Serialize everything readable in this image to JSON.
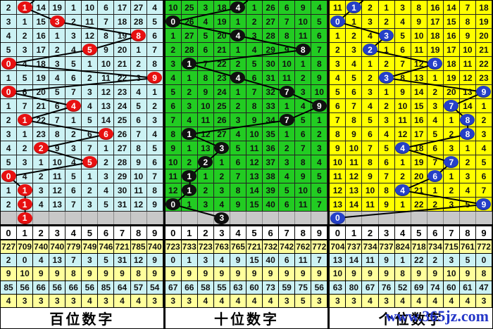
{
  "watermark": {
    "text": "www.365jz.com",
    "color": "#2436c8"
  },
  "chart_data": {
    "type": "table",
    "columns": [
      "0",
      "1",
      "2",
      "3",
      "4",
      "5",
      "6",
      "7",
      "8",
      "9"
    ],
    "stats_row_bg": [
      "#ffff9c",
      "#ccf2f4",
      "#ffff9c",
      "#ccf2f4",
      "#ffff9c"
    ],
    "line_color": "#000000",
    "panels": [
      {
        "key": "hundreds",
        "label": "百位数字",
        "bg": "#ccf2f4",
        "circle_color": "#e81010",
        "rows": [
          {
            "cells": [
              "2",
              "1",
              "14",
              "19",
              "1",
              "10",
              "6",
              "17",
              "27",
              "4"
            ],
            "c": 1
          },
          {
            "cells": [
              "3",
              "1",
              "15",
              "3",
              "2",
              "11",
              "7",
              "18",
              "28",
              "5"
            ],
            "c": 3
          },
          {
            "cells": [
              "4",
              "2",
              "16",
              "1",
              "3",
              "12",
              "8",
              "19",
              "8",
              "6"
            ],
            "c": 8
          },
          {
            "cells": [
              "5",
              "3",
              "17",
              "2",
              "4",
              "5",
              "9",
              "20",
              "1",
              "7"
            ],
            "c": 5
          },
          {
            "cells": [
              "0",
              "4",
              "18",
              "3",
              "5",
              "1",
              "10",
              "21",
              "2",
              "8"
            ],
            "c": 0
          },
          {
            "cells": [
              "1",
              "5",
              "19",
              "4",
              "6",
              "2",
              "11",
              "22",
              "3",
              "9"
            ],
            "c": 9
          },
          {
            "cells": [
              "0",
              "6",
              "20",
              "5",
              "7",
              "3",
              "12",
              "23",
              "4",
              "1"
            ],
            "c": 0
          },
          {
            "cells": [
              "1",
              "7",
              "21",
              "6",
              "4",
              "4",
              "13",
              "24",
              "5",
              "2"
            ],
            "c": 4
          },
          {
            "cells": [
              "2",
              "1",
              "22",
              "7",
              "1",
              "5",
              "14",
              "25",
              "6",
              "3"
            ],
            "c": 1
          },
          {
            "cells": [
              "3",
              "1",
              "23",
              "8",
              "2",
              "6",
              "6",
              "26",
              "7",
              "4"
            ],
            "c": 6
          },
          {
            "cells": [
              "4",
              "2",
              "2",
              "9",
              "3",
              "7",
              "1",
              "27",
              "8",
              "5"
            ],
            "c": 2
          },
          {
            "cells": [
              "5",
              "3",
              "1",
              "10",
              "4",
              "5",
              "2",
              "28",
              "9",
              "6"
            ],
            "c": 5
          },
          {
            "cells": [
              "0",
              "4",
              "2",
              "11",
              "5",
              "1",
              "3",
              "29",
              "10",
              "7"
            ],
            "c": 0
          },
          {
            "cells": [
              "1",
              "1",
              "3",
              "12",
              "6",
              "2",
              "4",
              "30",
              "11",
              "8"
            ],
            "c": 1
          },
          {
            "cells": [
              "2",
              "1",
              "4",
              "13",
              "7",
              "3",
              "5",
              "31",
              "12",
              "9"
            ],
            "c": 1
          }
        ],
        "pending": {
          "c": 1,
          "v": "1"
        },
        "stats": [
          [
            "727",
            "709",
            "740",
            "740",
            "779",
            "749",
            "746",
            "721",
            "785",
            "740"
          ],
          [
            "2",
            "0",
            "4",
            "13",
            "7",
            "3",
            "5",
            "31",
            "12",
            "9"
          ],
          [
            "9",
            "10",
            "9",
            "9",
            "8",
            "9",
            "9",
            "9",
            "8",
            "9"
          ],
          [
            "85",
            "56",
            "66",
            "56",
            "66",
            "56",
            "85",
            "64",
            "57",
            "54"
          ],
          [
            "4",
            "3",
            "3",
            "3",
            "3",
            "4",
            "3",
            "4",
            "4",
            "3"
          ]
        ]
      },
      {
        "key": "tens",
        "label": "十位数字",
        "bg": "#22cc22",
        "circle_color": "#101010",
        "rows": [
          {
            "cells": [
              "10",
              "25",
              "3",
              "18",
              "4",
              "1",
              "26",
              "6",
              "9",
              "4"
            ],
            "c": 4
          },
          {
            "cells": [
              "0",
              "26",
              "4",
              "19",
              "1",
              "2",
              "27",
              "7",
              "10",
              "5"
            ],
            "c": 0
          },
          {
            "cells": [
              "1",
              "27",
              "5",
              "20",
              "4",
              "3",
              "28",
              "8",
              "11",
              "6"
            ],
            "c": 4
          },
          {
            "cells": [
              "2",
              "28",
              "6",
              "21",
              "1",
              "4",
              "29",
              "9",
              "8",
              "7"
            ],
            "c": 8
          },
          {
            "cells": [
              "3",
              "1",
              "7",
              "22",
              "2",
              "5",
              "30",
              "10",
              "1",
              "8"
            ],
            "c": 1
          },
          {
            "cells": [
              "4",
              "1",
              "8",
              "23",
              "4",
              "6",
              "31",
              "11",
              "2",
              "9"
            ],
            "c": 4
          },
          {
            "cells": [
              "5",
              "2",
              "9",
              "24",
              "1",
              "7",
              "32",
              "7",
              "3",
              "10"
            ],
            "c": 7
          },
          {
            "cells": [
              "6",
              "3",
              "10",
              "25",
              "2",
              "8",
              "33",
              "1",
              "4",
              "9"
            ],
            "c": 9
          },
          {
            "cells": [
              "7",
              "4",
              "11",
              "26",
              "3",
              "9",
              "34",
              "7",
              "5",
              "1"
            ],
            "c": 7
          },
          {
            "cells": [
              "8",
              "1",
              "12",
              "27",
              "4",
              "10",
              "35",
              "1",
              "6",
              "2"
            ],
            "c": 1
          },
          {
            "cells": [
              "9",
              "1",
              "13",
              "3",
              "5",
              "11",
              "36",
              "2",
              "7",
              "3"
            ],
            "c": 3
          },
          {
            "cells": [
              "10",
              "2",
              "2",
              "1",
              "6",
              "12",
              "37",
              "3",
              "8",
              "4"
            ],
            "c": 2
          },
          {
            "cells": [
              "11",
              "1",
              "1",
              "2",
              "7",
              "13",
              "38",
              "4",
              "9",
              "5"
            ],
            "c": 1
          },
          {
            "cells": [
              "12",
              "1",
              "2",
              "3",
              "8",
              "14",
              "39",
              "5",
              "10",
              "6"
            ],
            "c": 1
          },
          {
            "cells": [
              "0",
              "1",
              "3",
              "4",
              "9",
              "15",
              "40",
              "6",
              "11",
              "7"
            ],
            "c": 0
          }
        ],
        "pending": {
          "c": 3,
          "v": "3"
        },
        "stats": [
          [
            "723",
            "733",
            "723",
            "763",
            "765",
            "721",
            "732",
            "742",
            "762",
            "772"
          ],
          [
            "0",
            "1",
            "3",
            "4",
            "9",
            "15",
            "40",
            "6",
            "11",
            "7"
          ],
          [
            "9",
            "9",
            "9",
            "9",
            "9",
            "9",
            "9",
            "9",
            "9",
            "9"
          ],
          [
            "67",
            "66",
            "58",
            "55",
            "63",
            "60",
            "73",
            "59",
            "75",
            "56"
          ],
          [
            "3",
            "3",
            "4",
            "4",
            "4",
            "4",
            "4",
            "3",
            "5",
            "3"
          ]
        ]
      },
      {
        "key": "units",
        "label": "个位数字",
        "bg": "#ffff00",
        "circle_color": "#2540c8",
        "rows": [
          {
            "cells": [
              "11",
              "1",
              "2",
              "1",
              "3",
              "8",
              "16",
              "14",
              "7",
              "18"
            ],
            "c": 1
          },
          {
            "cells": [
              "0",
              "1",
              "3",
              "2",
              "4",
              "9",
              "17",
              "15",
              "8",
              "19"
            ],
            "c": 0
          },
          {
            "cells": [
              "1",
              "2",
              "4",
              "3",
              "5",
              "10",
              "18",
              "16",
              "9",
              "20"
            ],
            "c": 3
          },
          {
            "cells": [
              "2",
              "3",
              "2",
              "1",
              "6",
              "11",
              "19",
              "17",
              "10",
              "21"
            ],
            "c": 2
          },
          {
            "cells": [
              "3",
              "4",
              "1",
              "2",
              "7",
              "12",
              "6",
              "18",
              "11",
              "22"
            ],
            "c": 6
          },
          {
            "cells": [
              "4",
              "5",
              "2",
              "3",
              "8",
              "13",
              "1",
              "19",
              "12",
              "23"
            ],
            "c": 3
          },
          {
            "cells": [
              "5",
              "6",
              "3",
              "1",
              "9",
              "14",
              "2",
              "20",
              "13",
              "9"
            ],
            "c": 9
          },
          {
            "cells": [
              "6",
              "7",
              "4",
              "2",
              "10",
              "15",
              "3",
              "7",
              "14",
              "1"
            ],
            "c": 7
          },
          {
            "cells": [
              "7",
              "8",
              "5",
              "3",
              "11",
              "16",
              "4",
              "1",
              "8",
              "2"
            ],
            "c": 8
          },
          {
            "cells": [
              "8",
              "9",
              "6",
              "4",
              "12",
              "17",
              "5",
              "2",
              "8",
              "3"
            ],
            "c": 8
          },
          {
            "cells": [
              "9",
              "10",
              "7",
              "5",
              "4",
              "18",
              "6",
              "3",
              "1",
              "4"
            ],
            "c": 4
          },
          {
            "cells": [
              "10",
              "11",
              "8",
              "6",
              "1",
              "19",
              "7",
              "7",
              "2",
              "5"
            ],
            "c": 7
          },
          {
            "cells": [
              "11",
              "12",
              "9",
              "7",
              "2",
              "20",
              "6",
              "1",
              "3",
              "6"
            ],
            "c": 6
          },
          {
            "cells": [
              "12",
              "13",
              "10",
              "8",
              "4",
              "21",
              "1",
              "2",
              "4",
              "7"
            ],
            "c": 4
          },
          {
            "cells": [
              "13",
              "14",
              "11",
              "9",
              "1",
              "22",
              "2",
              "3",
              "5",
              "9"
            ],
            "c": 9
          }
        ],
        "pending": {
          "c": 0,
          "v": "0"
        },
        "stats": [
          [
            "704",
            "737",
            "734",
            "737",
            "824",
            "718",
            "734",
            "715",
            "761",
            "772"
          ],
          [
            "13",
            "14",
            "11",
            "9",
            "1",
            "22",
            "2",
            "3",
            "5",
            "0"
          ],
          [
            "10",
            "9",
            "9",
            "9",
            "8",
            "9",
            "9",
            "10",
            "9",
            "8"
          ],
          [
            "63",
            "80",
            "67",
            "76",
            "52",
            "69",
            "74",
            "60",
            "61",
            "47"
          ],
          [
            "3",
            "3",
            "4",
            "3",
            "4",
            "4",
            "4",
            "4",
            "4",
            "3"
          ]
        ]
      }
    ]
  }
}
